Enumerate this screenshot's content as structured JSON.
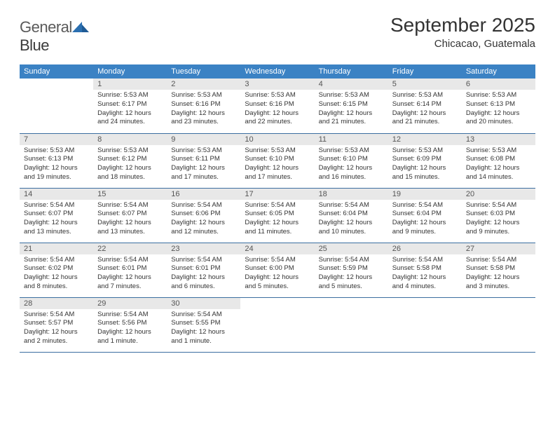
{
  "logo": {
    "text1": "General",
    "text2": "Blue"
  },
  "title": "September 2025",
  "location": "Chicacao, Guatemala",
  "theme": {
    "header_bg": "#3b82c4",
    "header_text": "#ffffff",
    "daynum_bg": "#e8e8e8",
    "border_color": "#3b6ea0",
    "body_text": "#333333",
    "logo_gray": "#5a5a5a",
    "logo_blue": "#2b6fb0"
  },
  "weekdays": [
    "Sunday",
    "Monday",
    "Tuesday",
    "Wednesday",
    "Thursday",
    "Friday",
    "Saturday"
  ],
  "weeks": [
    [
      null,
      {
        "n": "1",
        "sunrise": "5:53 AM",
        "sunset": "6:17 PM",
        "daylight": "12 hours and 24 minutes."
      },
      {
        "n": "2",
        "sunrise": "5:53 AM",
        "sunset": "6:16 PM",
        "daylight": "12 hours and 23 minutes."
      },
      {
        "n": "3",
        "sunrise": "5:53 AM",
        "sunset": "6:16 PM",
        "daylight": "12 hours and 22 minutes."
      },
      {
        "n": "4",
        "sunrise": "5:53 AM",
        "sunset": "6:15 PM",
        "daylight": "12 hours and 21 minutes."
      },
      {
        "n": "5",
        "sunrise": "5:53 AM",
        "sunset": "6:14 PM",
        "daylight": "12 hours and 21 minutes."
      },
      {
        "n": "6",
        "sunrise": "5:53 AM",
        "sunset": "6:13 PM",
        "daylight": "12 hours and 20 minutes."
      }
    ],
    [
      {
        "n": "7",
        "sunrise": "5:53 AM",
        "sunset": "6:13 PM",
        "daylight": "12 hours and 19 minutes."
      },
      {
        "n": "8",
        "sunrise": "5:53 AM",
        "sunset": "6:12 PM",
        "daylight": "12 hours and 18 minutes."
      },
      {
        "n": "9",
        "sunrise": "5:53 AM",
        "sunset": "6:11 PM",
        "daylight": "12 hours and 17 minutes."
      },
      {
        "n": "10",
        "sunrise": "5:53 AM",
        "sunset": "6:10 PM",
        "daylight": "12 hours and 17 minutes."
      },
      {
        "n": "11",
        "sunrise": "5:53 AM",
        "sunset": "6:10 PM",
        "daylight": "12 hours and 16 minutes."
      },
      {
        "n": "12",
        "sunrise": "5:53 AM",
        "sunset": "6:09 PM",
        "daylight": "12 hours and 15 minutes."
      },
      {
        "n": "13",
        "sunrise": "5:53 AM",
        "sunset": "6:08 PM",
        "daylight": "12 hours and 14 minutes."
      }
    ],
    [
      {
        "n": "14",
        "sunrise": "5:54 AM",
        "sunset": "6:07 PM",
        "daylight": "12 hours and 13 minutes."
      },
      {
        "n": "15",
        "sunrise": "5:54 AM",
        "sunset": "6:07 PM",
        "daylight": "12 hours and 13 minutes."
      },
      {
        "n": "16",
        "sunrise": "5:54 AM",
        "sunset": "6:06 PM",
        "daylight": "12 hours and 12 minutes."
      },
      {
        "n": "17",
        "sunrise": "5:54 AM",
        "sunset": "6:05 PM",
        "daylight": "12 hours and 11 minutes."
      },
      {
        "n": "18",
        "sunrise": "5:54 AM",
        "sunset": "6:04 PM",
        "daylight": "12 hours and 10 minutes."
      },
      {
        "n": "19",
        "sunrise": "5:54 AM",
        "sunset": "6:04 PM",
        "daylight": "12 hours and 9 minutes."
      },
      {
        "n": "20",
        "sunrise": "5:54 AM",
        "sunset": "6:03 PM",
        "daylight": "12 hours and 9 minutes."
      }
    ],
    [
      {
        "n": "21",
        "sunrise": "5:54 AM",
        "sunset": "6:02 PM",
        "daylight": "12 hours and 8 minutes."
      },
      {
        "n": "22",
        "sunrise": "5:54 AM",
        "sunset": "6:01 PM",
        "daylight": "12 hours and 7 minutes."
      },
      {
        "n": "23",
        "sunrise": "5:54 AM",
        "sunset": "6:01 PM",
        "daylight": "12 hours and 6 minutes."
      },
      {
        "n": "24",
        "sunrise": "5:54 AM",
        "sunset": "6:00 PM",
        "daylight": "12 hours and 5 minutes."
      },
      {
        "n": "25",
        "sunrise": "5:54 AM",
        "sunset": "5:59 PM",
        "daylight": "12 hours and 5 minutes."
      },
      {
        "n": "26",
        "sunrise": "5:54 AM",
        "sunset": "5:58 PM",
        "daylight": "12 hours and 4 minutes."
      },
      {
        "n": "27",
        "sunrise": "5:54 AM",
        "sunset": "5:58 PM",
        "daylight": "12 hours and 3 minutes."
      }
    ],
    [
      {
        "n": "28",
        "sunrise": "5:54 AM",
        "sunset": "5:57 PM",
        "daylight": "12 hours and 2 minutes."
      },
      {
        "n": "29",
        "sunrise": "5:54 AM",
        "sunset": "5:56 PM",
        "daylight": "12 hours and 1 minute."
      },
      {
        "n": "30",
        "sunrise": "5:54 AM",
        "sunset": "5:55 PM",
        "daylight": "12 hours and 1 minute."
      },
      null,
      null,
      null,
      null
    ]
  ],
  "labels": {
    "sunrise": "Sunrise:",
    "sunset": "Sunset:",
    "daylight": "Daylight:"
  }
}
